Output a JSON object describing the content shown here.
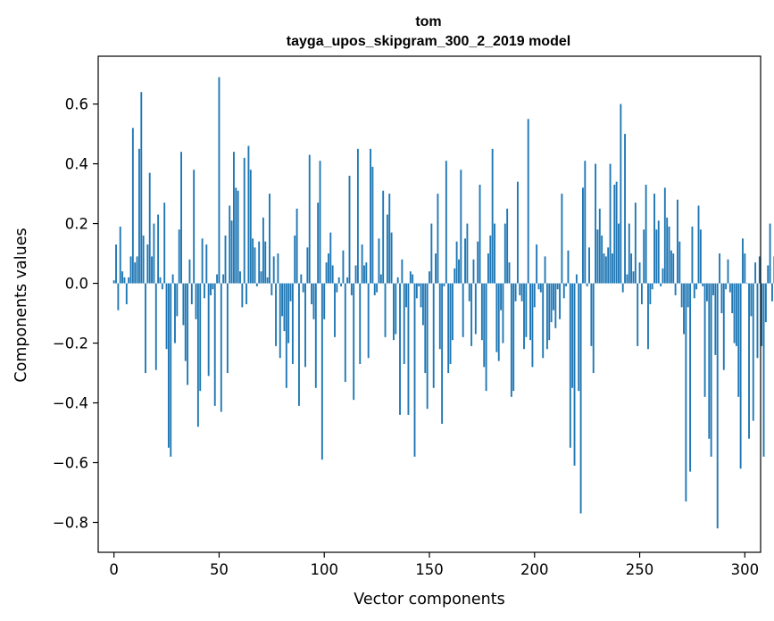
{
  "chart_data": {
    "type": "bar",
    "title": "tom",
    "subtitle": "tayga_upos_skipgram_300_2_2019 model",
    "xlabel": "Vector components",
    "ylabel": "Components values",
    "xlim": [
      -7.5,
      307.5
    ],
    "ylim": [
      -0.9,
      0.76
    ],
    "xticks": [
      0,
      50,
      100,
      150,
      200,
      250,
      300
    ],
    "xtick_labels": [
      "0",
      "50",
      "100",
      "150",
      "200",
      "250",
      "300"
    ],
    "yticks": [
      -0.8,
      -0.6,
      -0.4,
      -0.2,
      0.0,
      0.2,
      0.4,
      0.6
    ],
    "ytick_labels": [
      "−0.8",
      "−0.6",
      "−0.4",
      "−0.2",
      "0.0",
      "0.2",
      "0.4",
      "0.6"
    ],
    "bar_color": "#1f77b4",
    "grid": false,
    "values": [
      0.01,
      0.13,
      -0.09,
      0.19,
      0.04,
      0.02,
      -0.07,
      0.02,
      0.09,
      0.52,
      0.07,
      0.09,
      0.45,
      0.64,
      0.16,
      -0.3,
      0.13,
      0.37,
      0.09,
      0.2,
      -0.29,
      0.23,
      0.02,
      -0.02,
      0.27,
      -0.22,
      -0.55,
      -0.58,
      0.03,
      -0.2,
      -0.11,
      0.18,
      0.44,
      -0.14,
      -0.26,
      -0.34,
      0.08,
      -0.07,
      0.38,
      -0.12,
      -0.48,
      -0.36,
      0.15,
      -0.05,
      0.13,
      -0.31,
      -0.04,
      -0.02,
      -0.41,
      0.03,
      0.69,
      -0.43,
      0.03,
      0.16,
      -0.3,
      0.26,
      0.21,
      0.44,
      0.32,
      0.31,
      0.04,
      -0.08,
      0.42,
      -0.07,
      0.46,
      0.38,
      0.15,
      0.12,
      -0.01,
      0.14,
      0.04,
      0.22,
      0.14,
      0.02,
      0.3,
      -0.04,
      0.09,
      -0.21,
      0.1,
      -0.25,
      -0.11,
      -0.16,
      -0.35,
      -0.2,
      -0.06,
      -0.27,
      0.16,
      0.25,
      -0.41,
      0.03,
      -0.03,
      -0.28,
      0.12,
      0.43,
      -0.07,
      -0.12,
      -0.35,
      0.27,
      0.41,
      -0.59,
      -0.12,
      0.07,
      0.1,
      0.17,
      0.06,
      -0.18,
      -0.03,
      0.02,
      -0.01,
      0.11,
      -0.33,
      0.02,
      0.36,
      -0.04,
      -0.39,
      0.06,
      0.45,
      -0.27,
      0.13,
      0.06,
      0.07,
      -0.25,
      0.45,
      0.39,
      -0.04,
      -0.03,
      0.15,
      0.03,
      0.31,
      -0.18,
      0.23,
      0.3,
      0.17,
      -0.19,
      -0.17,
      0.02,
      -0.44,
      0.08,
      -0.27,
      -0.08,
      -0.44,
      0.04,
      0.03,
      -0.58,
      -0.05,
      -0.01,
      -0.08,
      -0.14,
      -0.3,
      -0.42,
      0.04,
      0.2,
      -0.35,
      0.1,
      0.3,
      -0.22,
      -0.47,
      -0.01,
      0.41,
      -0.3,
      -0.27,
      -0.19,
      0.05,
      0.14,
      0.08,
      0.38,
      -0.18,
      0.15,
      0.2,
      -0.06,
      -0.21,
      0.08,
      -0.17,
      0.14,
      0.33,
      -0.19,
      -0.28,
      -0.36,
      0.1,
      0.16,
      0.45,
      0.2,
      -0.23,
      -0.26,
      -0.09,
      -0.2,
      0.2,
      0.25,
      0.07,
      -0.38,
      -0.36,
      -0.06,
      0.34,
      -0.04,
      -0.06,
      -0.22,
      -0.18,
      0.55,
      -0.19,
      -0.28,
      -0.08,
      0.13,
      -0.02,
      -0.03,
      -0.25,
      0.09,
      -0.22,
      -0.19,
      -0.13,
      -0.09,
      -0.15,
      -0.02,
      -0.12,
      0.3,
      -0.05,
      -0.01,
      0.11,
      -0.55,
      -0.35,
      -0.61,
      0.03,
      -0.36,
      -0.77,
      0.32,
      0.41,
      -0.01,
      0.12,
      -0.21,
      -0.3,
      0.4,
      0.18,
      0.25,
      0.16,
      0.1,
      0.09,
      0.12,
      0.4,
      0.1,
      0.33,
      0.34,
      0.2,
      0.6,
      -0.03,
      0.5,
      0.03,
      0.2,
      0.1,
      0.04,
      0.27,
      -0.21,
      0.07,
      -0.07,
      0.18,
      0.33,
      -0.22,
      -0.07,
      -0.02,
      0.3,
      0.18,
      0.21,
      -0.01,
      0.05,
      0.32,
      0.22,
      0.19,
      0.11,
      0.1,
      -0.04,
      0.28,
      0.14,
      -0.08,
      -0.17,
      -0.73,
      -0.08,
      -0.63,
      0.19,
      -0.05,
      -0.02,
      0.26,
      0.18,
      -0.01,
      -0.38,
      -0.06,
      -0.52,
      -0.58,
      -0.04,
      -0.24,
      -0.82,
      0.1,
      -0.1,
      -0.29,
      -0.02,
      0.08,
      -0.03,
      -0.1,
      -0.2,
      -0.21,
      -0.38,
      -0.62,
      0.15,
      0.1,
      0.0,
      -0.52,
      -0.11,
      -0.46,
      0.07,
      -0.25,
      0.09,
      -0.21,
      -0.58,
      -0.13,
      0.06,
      0.2,
      -0.06,
      0.09
    ]
  }
}
